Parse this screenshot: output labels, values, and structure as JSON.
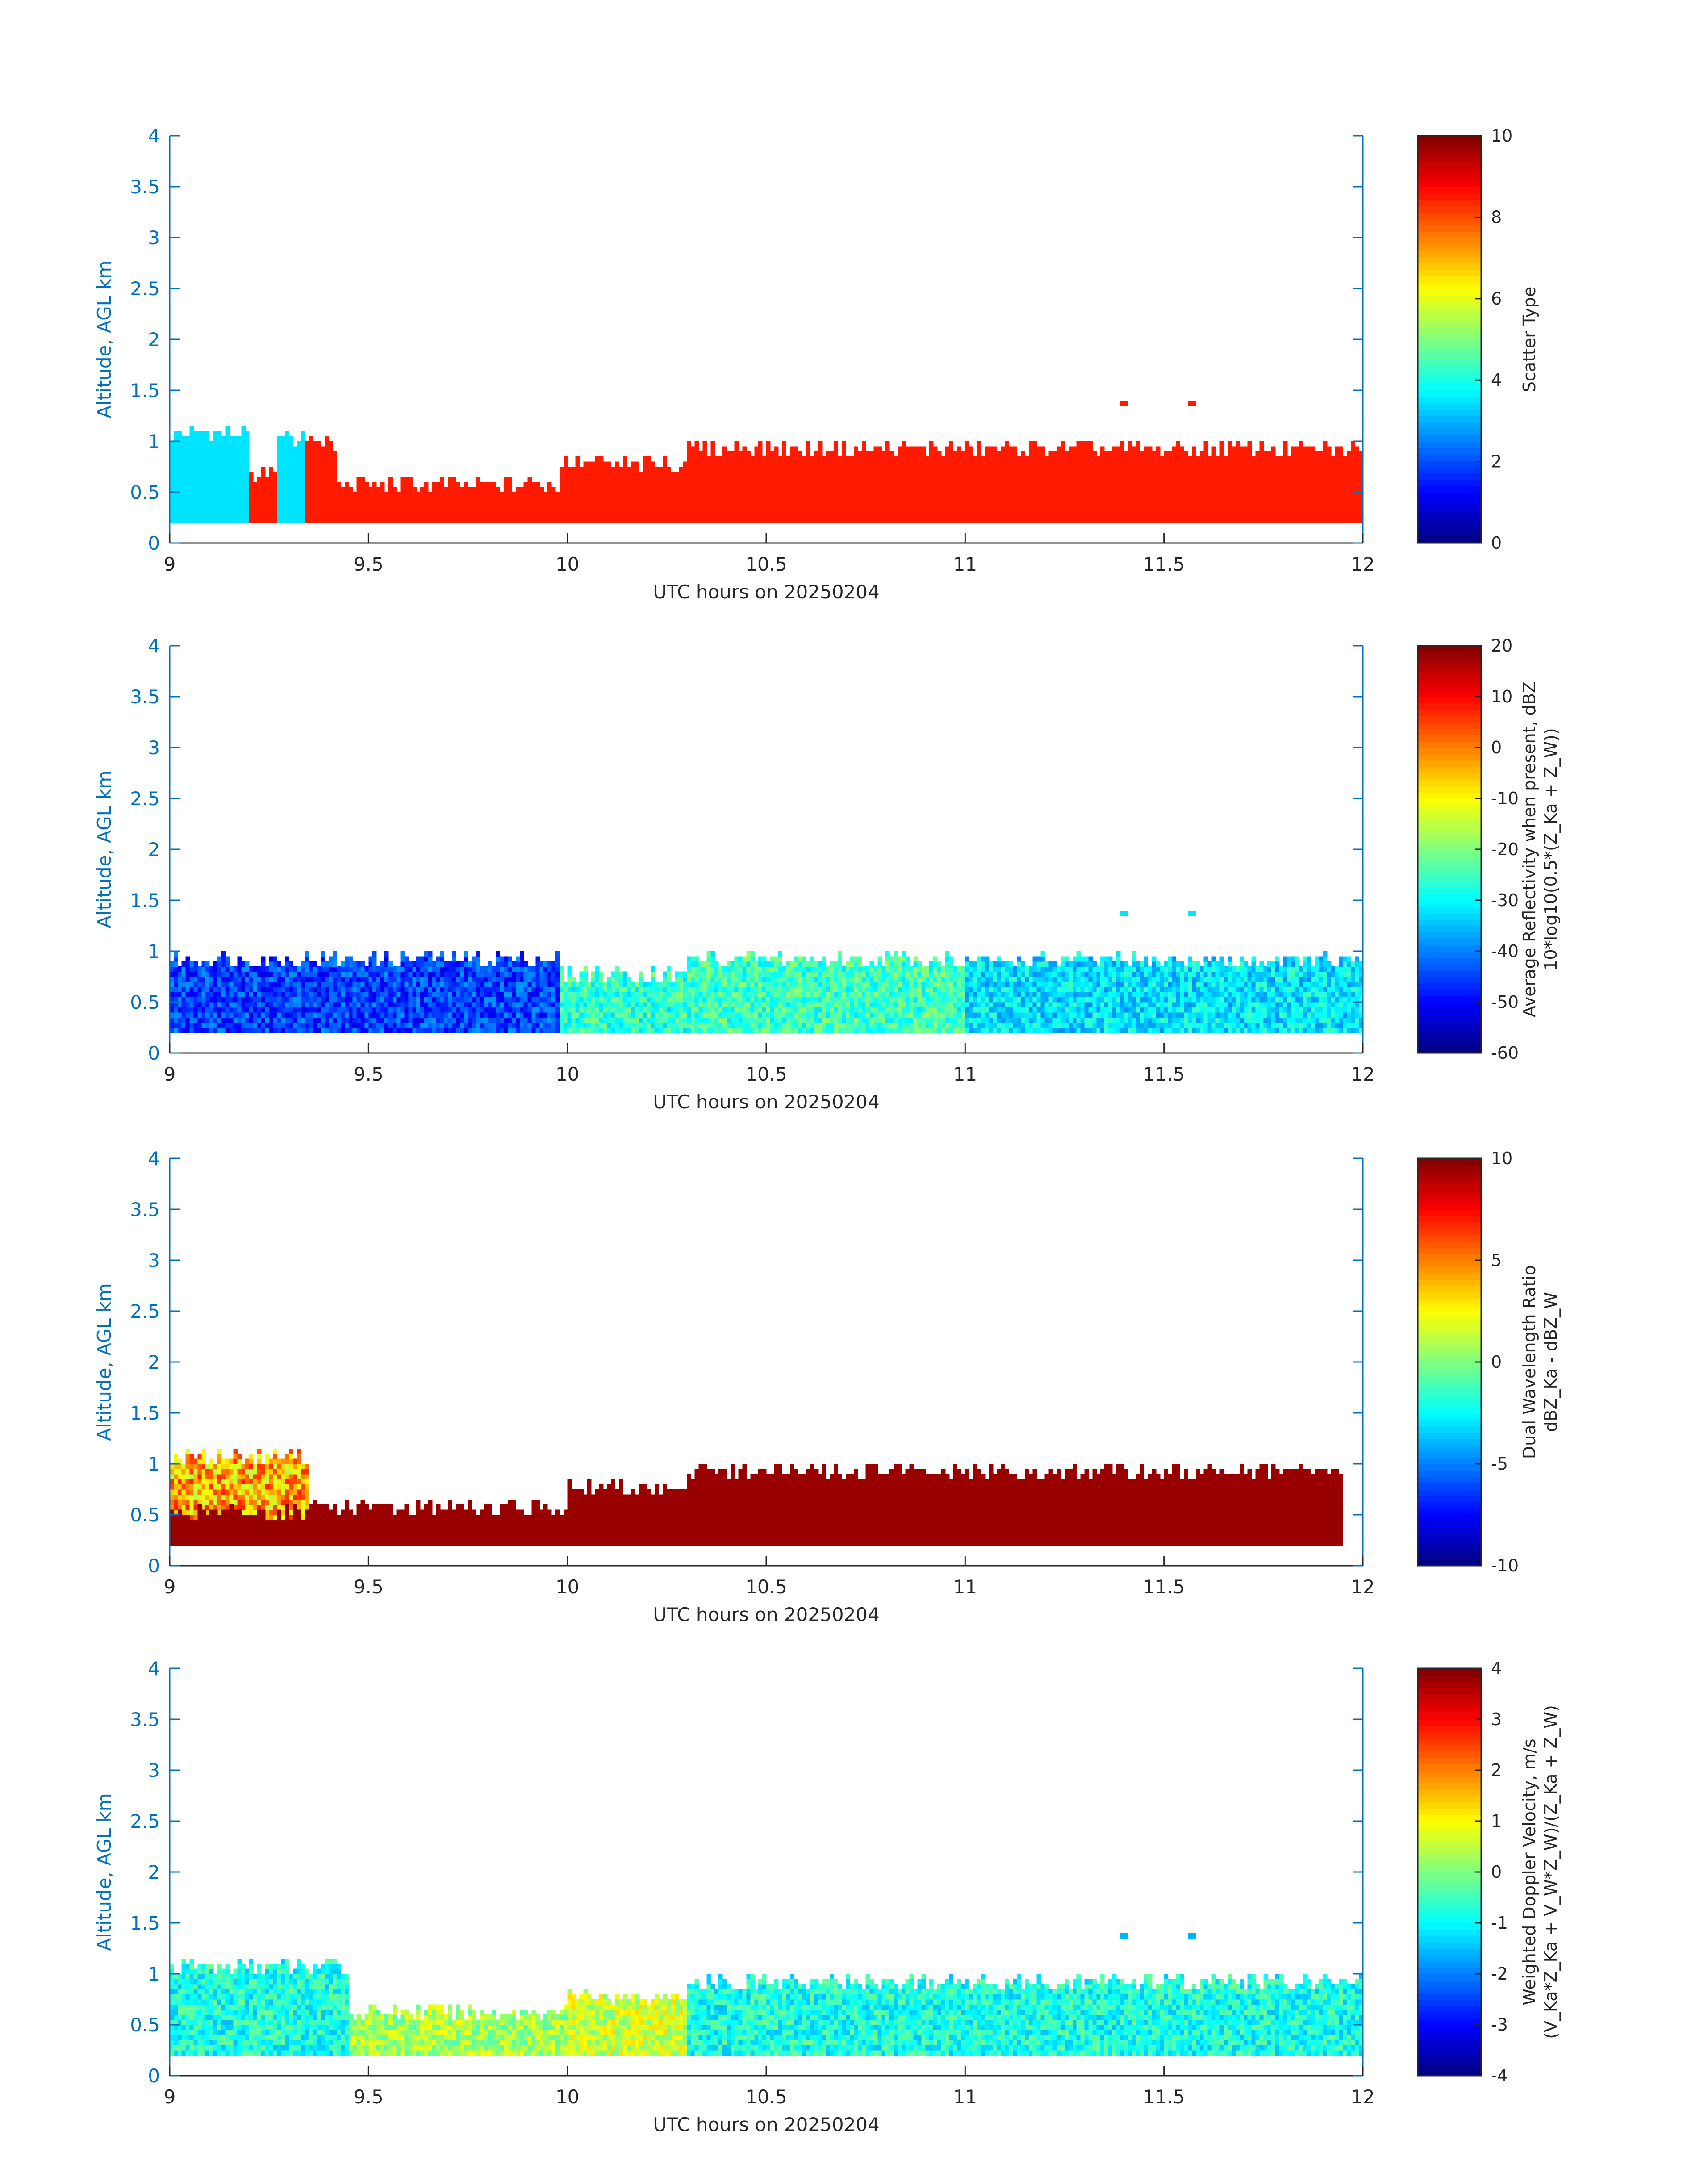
{
  "figure": {
    "date": "20250204",
    "xlabel": "UTC hours on 20250204",
    "ylabel": "Altitude, AGL km",
    "axis_color": "#0072BD"
  },
  "chart_data": [
    {
      "type": "heatmap",
      "panel": "scatter-type",
      "x_ticks": [
        "9",
        "9.5",
        "10",
        "10.5",
        "11",
        "11.5",
        "12"
      ],
      "y_ticks": [
        "0",
        "0.5",
        "1",
        "1.5",
        "2",
        "2.5",
        "3",
        "3.5",
        "4"
      ],
      "xlim": [
        9,
        12
      ],
      "ylim": [
        0,
        4
      ],
      "colorbar": {
        "label": "Scatter Type",
        "sublabel": "",
        "ticks": [
          "0",
          "2",
          "4",
          "6",
          "8",
          "10"
        ],
        "clim": [
          0,
          10
        ]
      },
      "dominant_value": 8.5,
      "colormap": "jet",
      "regions": [
        {
          "x": [
            9.0,
            9.2
          ],
          "ytop": 1.05,
          "value": 3.5
        },
        {
          "x": [
            9.2,
            9.27
          ],
          "ytop": 0.65,
          "value": 8.5
        },
        {
          "x": [
            9.27,
            9.34
          ],
          "ytop": 1.0,
          "value": 3.5
        },
        {
          "x": [
            9.34,
            9.42
          ],
          "ytop": 0.95,
          "value": 8.5
        },
        {
          "x": [
            9.42,
            9.98
          ],
          "ytop": 0.55,
          "value": 8.5
        },
        {
          "x": [
            9.98,
            10.3
          ],
          "ytop": 0.75,
          "value": 8.5
        },
        {
          "x": [
            10.3,
            12.0
          ],
          "ytop": 0.9,
          "value": 8.5
        }
      ],
      "isolated_pixels": [
        {
          "x": 11.39,
          "y": 1.35
        },
        {
          "x": 11.56,
          "y": 1.35
        }
      ]
    },
    {
      "type": "heatmap",
      "panel": "reflectivity",
      "x_ticks": [
        "9",
        "9.5",
        "10",
        "10.5",
        "11",
        "11.5",
        "12"
      ],
      "y_ticks": [
        "0",
        "0.5",
        "1",
        "1.5",
        "2",
        "2.5",
        "3",
        "3.5",
        "4"
      ],
      "xlim": [
        9,
        12
      ],
      "ylim": [
        0,
        4
      ],
      "colorbar": {
        "label": "Average Reflectivity when present, dBZ",
        "sublabel": "10*log10(0.5*(Z_Ka + Z_W))",
        "ticks": [
          "-60",
          "-50",
          "-40",
          "-30",
          "-20",
          "-10",
          "0",
          "10",
          "20"
        ],
        "clim": [
          -60,
          20
        ]
      },
      "colormap": "jet",
      "regions": [
        {
          "x": [
            9.0,
            9.98
          ],
          "ytop": 0.9,
          "value": -45
        },
        {
          "x": [
            9.98,
            10.3
          ],
          "ytop": 0.75,
          "value": -26
        },
        {
          "x": [
            10.3,
            11.0
          ],
          "ytop": 0.9,
          "value": -25
        },
        {
          "x": [
            11.0,
            12.0
          ],
          "ytop": 0.88,
          "value": -32
        }
      ],
      "isolated_pixels": [
        {
          "x": 11.39,
          "y": 1.35
        },
        {
          "x": 11.56,
          "y": 1.35
        }
      ]
    },
    {
      "type": "heatmap",
      "panel": "dual-wavelength-ratio",
      "x_ticks": [
        "9",
        "9.5",
        "10",
        "10.5",
        "11",
        "11.5",
        "12"
      ],
      "y_ticks": [
        "0",
        "0.5",
        "1",
        "1.5",
        "2",
        "2.5",
        "3",
        "3.5",
        "4"
      ],
      "xlim": [
        9,
        12
      ],
      "ylim": [
        0,
        4
      ],
      "colorbar": {
        "label": "Dual Wavelength Ratio",
        "sublabel": "dBZ_Ka - dBZ_W",
        "ticks": [
          "-10",
          "-5",
          "0",
          "5",
          "10"
        ],
        "clim": [
          -10,
          10
        ]
      },
      "colormap": "jet",
      "regions": [
        {
          "x": [
            9.0,
            9.35
          ],
          "ytop": 1.05,
          "value": 4
        },
        {
          "x": [
            9.0,
            9.35
          ],
          "ytop": 0.5,
          "value": 9.5
        },
        {
          "x": [
            9.35,
            10.0
          ],
          "ytop": 0.55,
          "value": 9.5
        },
        {
          "x": [
            10.0,
            10.3
          ],
          "ytop": 0.75,
          "value": 9.5
        },
        {
          "x": [
            10.3,
            11.95
          ],
          "ytop": 0.9,
          "value": 9.5
        }
      ],
      "isolated_pixels": []
    },
    {
      "type": "heatmap",
      "panel": "doppler-velocity",
      "x_ticks": [
        "9",
        "9.5",
        "10",
        "10.5",
        "11",
        "11.5",
        "12"
      ],
      "y_ticks": [
        "0",
        "0.5",
        "1",
        "1.5",
        "2",
        "2.5",
        "3",
        "3.5",
        "4"
      ],
      "xlim": [
        9,
        12
      ],
      "ylim": [
        0,
        4
      ],
      "colorbar": {
        "label": "Weighted Doppler Velocity, m/s",
        "sublabel": "(V_Ka*Z_Ka + V_W*Z_W)/(Z_Ka + Z_W)",
        "ticks": [
          "-4",
          "-3",
          "-2",
          "-1",
          "0",
          "1",
          "2",
          "3",
          "4"
        ],
        "clim": [
          -4,
          4
        ]
      },
      "colormap": "jet",
      "regions": [
        {
          "x": [
            9.0,
            9.45
          ],
          "ytop": 1.05,
          "value": -0.8
        },
        {
          "x": [
            9.45,
            10.0
          ],
          "ytop": 0.6,
          "value": 0.3
        },
        {
          "x": [
            10.0,
            10.3
          ],
          "ytop": 0.75,
          "value": 0.6
        },
        {
          "x": [
            10.3,
            12.0
          ],
          "ytop": 0.9,
          "value": -0.8
        }
      ],
      "isolated_pixels": [
        {
          "x": 11.39,
          "y": 1.35
        },
        {
          "x": 11.56,
          "y": 1.35
        }
      ]
    }
  ]
}
